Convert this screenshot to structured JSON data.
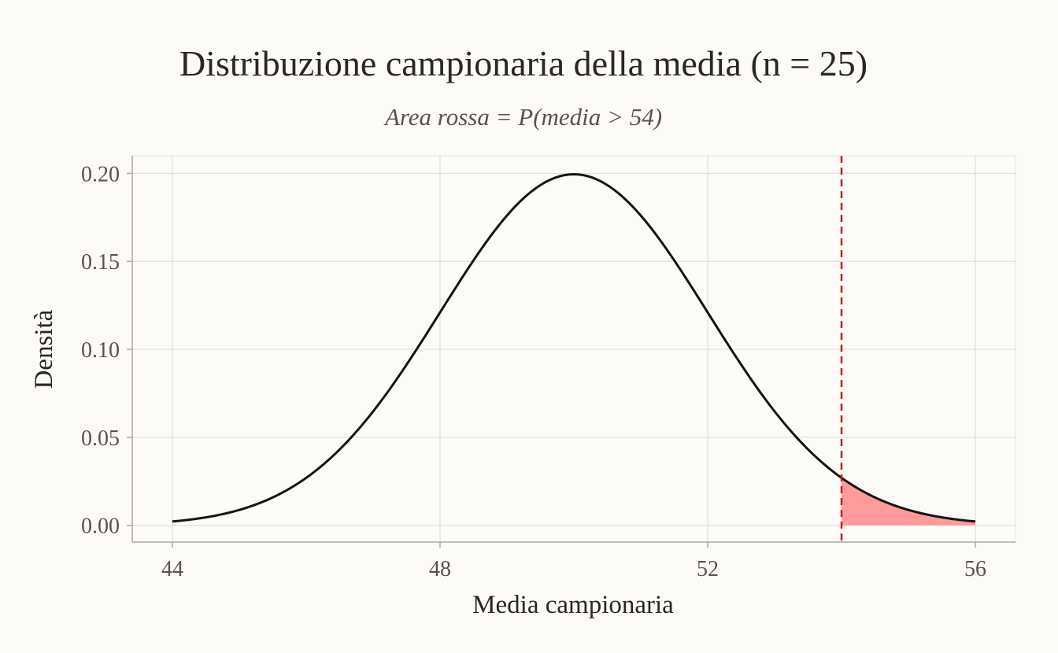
{
  "chart_data": {
    "type": "area",
    "title": "Distribuzione campionaria della media (n = 25)",
    "subtitle": "Area rossa = P(media > 54)",
    "xlabel": "Media campionaria",
    "ylabel": "Densità",
    "xlim": [
      43.4,
      56.6
    ],
    "ylim": [
      -0.0095,
      0.21
    ],
    "x_ticks": [
      44,
      48,
      52,
      56
    ],
    "x_tick_labels": [
      "44",
      "48",
      "52",
      "56"
    ],
    "y_ticks": [
      0.0,
      0.05,
      0.1,
      0.15,
      0.2
    ],
    "y_tick_labels": [
      "0.00",
      "0.05",
      "0.10",
      "0.15",
      "0.20"
    ],
    "grid": true,
    "distribution": {
      "family": "normal",
      "mean": 50,
      "sd": 2,
      "x_range": [
        44,
        56
      ]
    },
    "threshold": 54,
    "shaded_region": {
      "from": 54,
      "to": 56
    },
    "colors": {
      "curve": "#141414",
      "shade": "#ff9b9b",
      "threshold_line": "#dc1414"
    }
  }
}
